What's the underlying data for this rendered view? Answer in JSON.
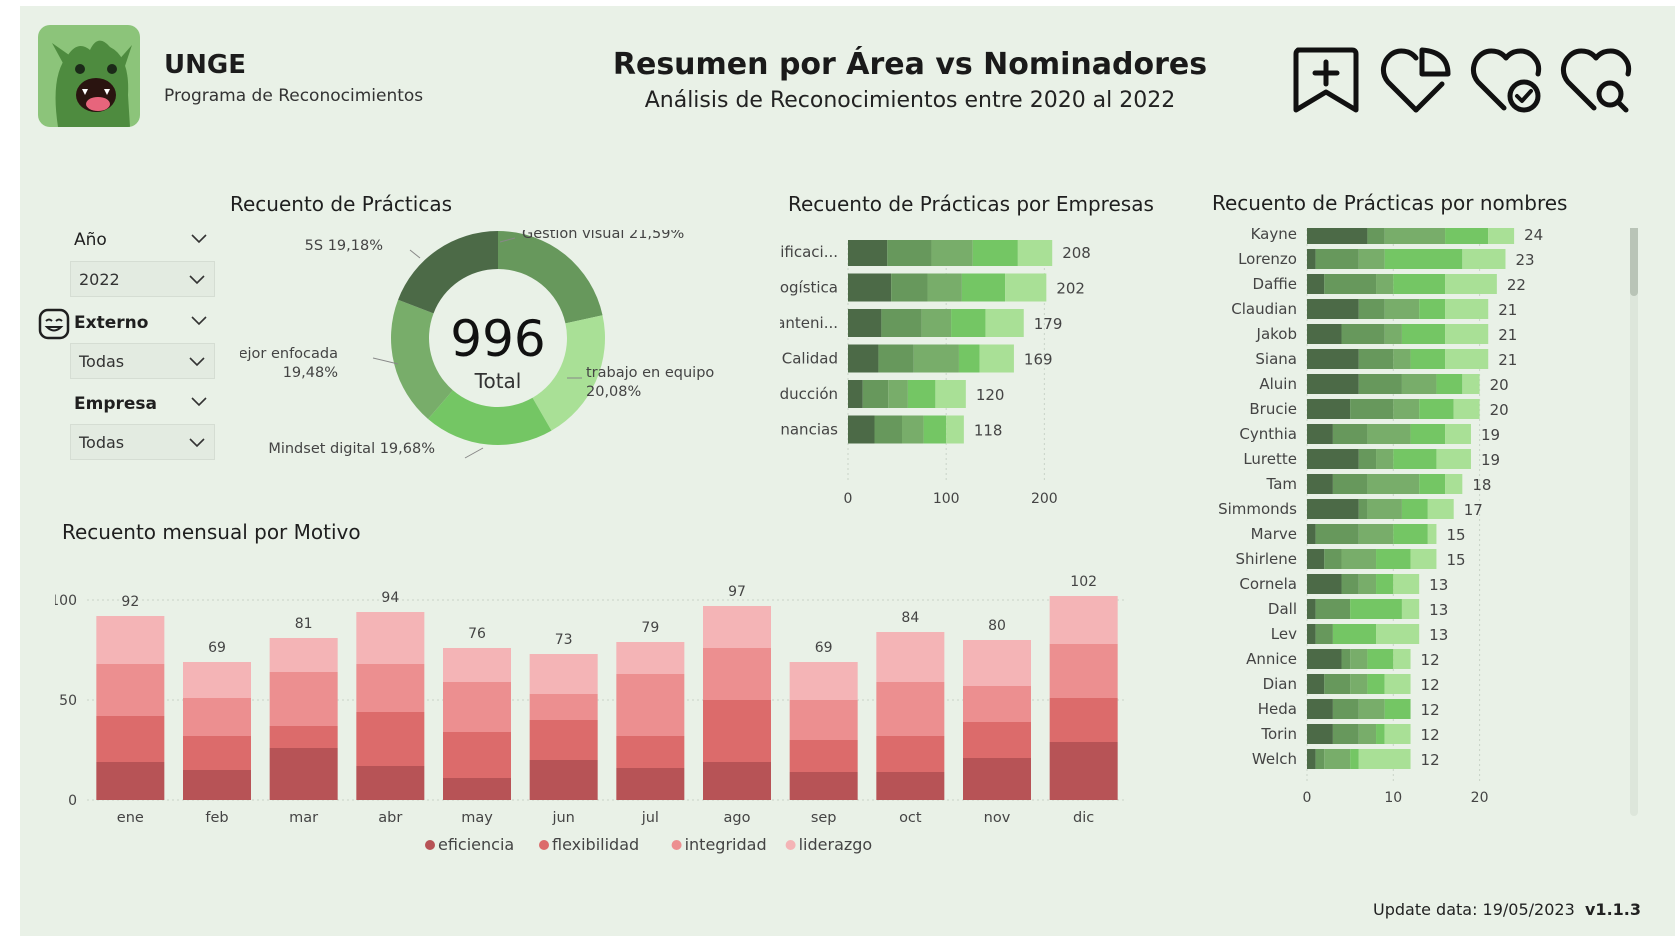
{
  "header": {
    "org_name": "UNGE",
    "org_subtitle": "Programa de Reconocimientos",
    "title": "Resumen por Área vs Nominadores",
    "subtitle": "Análisis de Reconocimientos entre 2020 al 2022",
    "icons": [
      "bookmark-add-icon",
      "heart-pie-icon",
      "heart-check-icon",
      "heart-search-icon"
    ]
  },
  "filters": {
    "year": {
      "label": "Año",
      "value": "2022"
    },
    "externo": {
      "label": "Externo",
      "value": "Todas",
      "icon": "face-smile-icon"
    },
    "empresa": {
      "label": "Empresa",
      "value": "Todas"
    }
  },
  "colors": {
    "greens": [
      "#4c6a47",
      "#67985c",
      "#78ad6a",
      "#74c664",
      "#a9e096"
    ],
    "reds": [
      "#b75356",
      "#dc6b6b",
      "#ec8f90",
      "#f4b4b6"
    ],
    "background": "#e9f1e7"
  },
  "footer": {
    "update_label": "Update data: 19/05/2023",
    "version": "v1.1.3"
  },
  "chart_data": [
    {
      "type": "pie",
      "title": "Recuento de Prácticas",
      "center_value": "996",
      "center_label": "Total",
      "slices": [
        {
          "label": "Gestión visual",
          "pct_label": "21,59%",
          "value": 21.59
        },
        {
          "label": "trabajo en equipo",
          "pct_label": "20,08%",
          "value": 20.08
        },
        {
          "label": "Mindset digital",
          "pct_label": "19,68%",
          "value": 19.68
        },
        {
          "label": "Mejor enfocada",
          "pct_label": "19,48%",
          "value": 19.48
        },
        {
          "label": "5S",
          "pct_label": "19,18%",
          "value": 19.18
        }
      ]
    },
    {
      "type": "bar",
      "orientation": "horizontal",
      "stacked": true,
      "title": "Recuento de Prácticas por Empresas",
      "categories": [
        "Planificaci...",
        "Logística",
        "Manteni...",
        "Calidad",
        "Producción",
        "Financias"
      ],
      "totals": [
        208,
        202,
        179,
        169,
        120,
        118
      ],
      "segments": [
        [
          40,
          45,
          42,
          46,
          35
        ],
        [
          44,
          37,
          35,
          44,
          42
        ],
        [
          34,
          41,
          30,
          35,
          39
        ],
        [
          31,
          36,
          46,
          21,
          35
        ],
        [
          15,
          26,
          20,
          28,
          31
        ],
        [
          27,
          28,
          22,
          23,
          18
        ]
      ],
      "xlim": [
        0,
        220
      ],
      "xticks": [
        0,
        100,
        200
      ]
    },
    {
      "type": "bar",
      "orientation": "horizontal",
      "stacked": true,
      "title": "Recuento de Prácticas por nombres",
      "categories": [
        "Kayne",
        "Lorenzo",
        "Daffie",
        "Claudian",
        "Jakob",
        "Siana",
        "Aluin",
        "Brucie",
        "Cynthia",
        "Lurette",
        "Tam",
        "Simmonds",
        "Marve",
        "Shirlene",
        "Cornela",
        "Dall",
        "Lev",
        "Annice",
        "Dian",
        "Heda",
        "Torin",
        "Welch"
      ],
      "totals": [
        24,
        23,
        22,
        21,
        21,
        21,
        20,
        20,
        19,
        19,
        18,
        17,
        15,
        15,
        13,
        13,
        13,
        12,
        12,
        12,
        12,
        12
      ],
      "segments": [
        [
          7,
          2,
          7,
          5,
          3
        ],
        [
          1,
          5,
          3,
          9,
          5
        ],
        [
          2,
          6,
          2,
          6,
          6
        ],
        [
          6,
          3,
          4,
          3,
          5
        ],
        [
          4,
          5,
          2,
          5,
          5
        ],
        [
          6,
          4,
          2,
          4,
          5
        ],
        [
          6,
          5,
          4,
          3,
          2
        ],
        [
          5,
          5,
          3,
          4,
          3
        ],
        [
          3,
          4,
          5,
          4,
          3
        ],
        [
          6,
          2,
          2,
          5,
          4
        ],
        [
          3,
          4,
          6,
          3,
          2
        ],
        [
          6,
          1,
          4,
          3,
          3
        ],
        [
          1,
          5,
          4,
          4,
          1
        ],
        [
          2,
          2,
          4,
          4,
          3
        ],
        [
          4,
          2,
          2,
          2,
          3
        ],
        [
          1,
          4,
          0,
          6,
          2
        ],
        [
          1,
          2,
          0,
          5,
          5
        ],
        [
          4,
          1,
          2,
          3,
          2
        ],
        [
          2,
          3,
          2,
          2,
          3
        ],
        [
          3,
          3,
          3,
          3,
          0
        ],
        [
          3,
          3,
          2,
          1,
          3
        ],
        [
          1,
          1,
          3,
          1,
          6
        ]
      ],
      "xlim": [
        0,
        27
      ],
      "xticks": [
        0,
        10,
        20
      ]
    },
    {
      "type": "bar",
      "stacked": true,
      "title": "Recuento mensual por Motivo",
      "categories": [
        "ene",
        "feb",
        "mar",
        "abr",
        "may",
        "jun",
        "jul",
        "ago",
        "sep",
        "oct",
        "nov",
        "dic"
      ],
      "totals": [
        92,
        69,
        81,
        94,
        76,
        73,
        79,
        97,
        69,
        84,
        80,
        102
      ],
      "series": [
        {
          "name": "eficiencia",
          "values": [
            19,
            15,
            26,
            17,
            11,
            20,
            16,
            19,
            14,
            14,
            21,
            29
          ]
        },
        {
          "name": "flexibilidad",
          "values": [
            23,
            17,
            11,
            27,
            23,
            20,
            16,
            31,
            16,
            18,
            18,
            22
          ]
        },
        {
          "name": "integridad",
          "values": [
            26,
            19,
            27,
            24,
            25,
            13,
            31,
            26,
            20,
            27,
            18,
            27
          ]
        },
        {
          "name": "liderazgo",
          "values": [
            24,
            18,
            17,
            26,
            17,
            20,
            16,
            21,
            19,
            25,
            23,
            24
          ]
        }
      ],
      "ylim": [
        0,
        100
      ],
      "yticks": [
        0,
        50,
        100
      ]
    }
  ]
}
